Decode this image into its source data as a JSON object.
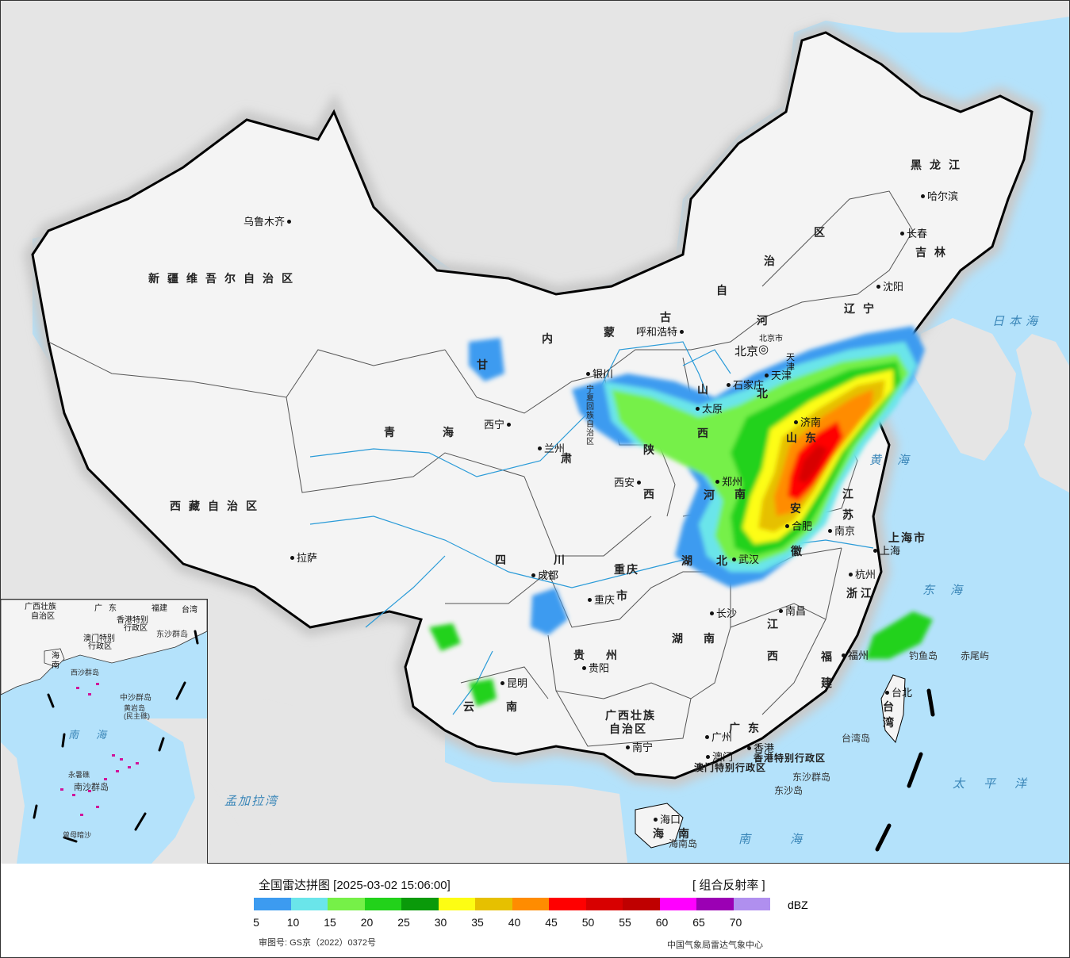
{
  "legend": {
    "title": "全国雷达拼图 [2025-03-02 15:06:00]",
    "product": "[ 组合反射率 ]",
    "unit": "dBZ",
    "approval": "审图号: GS京（2022）0372号",
    "source": "中国气象局雷达气象中心",
    "colors": [
      "#3c9bf0",
      "#6ae5ea",
      "#76f048",
      "#22d21a",
      "#0a9a0a",
      "#fdfd13",
      "#e6c000",
      "#ff8c00",
      "#ff0000",
      "#d80000",
      "#bf0000",
      "#ff00ff",
      "#9b00b4",
      "#b08fef"
    ],
    "ticks": [
      "5",
      "10",
      "15",
      "20",
      "25",
      "30",
      "35",
      "40",
      "45",
      "50",
      "55",
      "60",
      "65",
      "70"
    ]
  },
  "provinces": {
    "xinjiang": "新疆维吾尔自治区",
    "xizang": "西藏自治区",
    "qinghai_1": "青",
    "qinghai_2": "海",
    "gansu": "甘",
    "neimeng_1": "内",
    "neimeng_2": "蒙",
    "neimeng_3": "古",
    "neimeng_4": "自",
    "neimeng_5": "治",
    "neimeng_6": "区",
    "heilongjiang": "黑龙江",
    "jilin": "吉林",
    "liaoning": "辽宁",
    "hebei_1": "河",
    "hebei_2": "北",
    "shanxi_1": "山",
    "shanxi_2": "西",
    "shaanxi_1": "陕",
    "shaanxi_2": "西",
    "ningxia": "宁夏回族自治区",
    "shandong": "山东",
    "henan_1": "河",
    "henan_2": "南",
    "jiangsu_1": "江",
    "jiangsu_2": "苏",
    "anhui_1": "安",
    "anhui_2": "徽",
    "hubei_1": "湖",
    "hubei_2": "北",
    "sichuan_1": "四",
    "sichuan_2": "川",
    "chongqing_1": "重庆",
    "chongqing_2": "市",
    "zhejiang": "浙江",
    "jiangxi_1": "江",
    "jiangxi_2": "西",
    "hunan_1": "湖",
    "hunan_2": "南",
    "guizhou_1": "贵",
    "guizhou_2": "州",
    "yunnan_1": "云",
    "yunnan_2": "南",
    "fujian_1": "福",
    "fujian_2": "建",
    "guangxi_1": "广西壮族",
    "guangxi_2": "自治区",
    "guangdong": "广东",
    "hainan": "海南",
    "taiwan_1": "台",
    "taiwan_2": "湾",
    "shanghai": "上海市",
    "tianjin": "天津",
    "gansu_2": "肃",
    "hongkong": "香港特别行政区",
    "macau": "澳门特别行政区"
  },
  "cities": {
    "urumqi": "乌鲁木齐",
    "lhasa": "拉萨",
    "xining": "西宁",
    "lanzhou": "兰州",
    "yinchuan": "银川",
    "hohhot": "呼和浩特",
    "beijing": "北京",
    "beijing_small": "北京市",
    "tianjin": "天津",
    "shijiazhuang": "石家庄",
    "taiyuan": "太原",
    "jinan": "济南",
    "zhengzhou": "郑州",
    "xian": "西安",
    "hefei": "合肥",
    "nanjing": "南京",
    "shanghai": "上海",
    "hangzhou": "杭州",
    "wuhan": "武汉",
    "chengdu": "成都",
    "chongqing": "重庆",
    "changsha": "长沙",
    "nanchang": "南昌",
    "fuzhou": "福州",
    "guiyang": "贵阳",
    "kunming": "昆明",
    "nanning": "南宁",
    "guangzhou": "广州",
    "hongkong": "香港",
    "macau": "澳门",
    "haikou": "海口",
    "taipei": "台北",
    "harbin": "哈尔滨",
    "changchun": "长春",
    "shenyang": "沈阳"
  },
  "seas": {
    "japan_sea": "日本海",
    "yellow_sea": "黄海",
    "east_sea": "东海",
    "south_sea": "南海",
    "pacific": "太平洋",
    "bengal": "孟加拉湾"
  },
  "islands": {
    "diaoyu": "钓鱼岛",
    "chiwei": "赤尾屿",
    "taiwan_island": "台湾岛",
    "dongsha_qundao": "东沙群岛",
    "dongsha_dao": "东沙岛",
    "hainan_island": "海南岛"
  },
  "inset": {
    "guangxi": "广西壮族",
    "guangxi_2": "自治区",
    "guangdong": "广东",
    "fujian": "福建",
    "taiwan": "台湾",
    "hk": "香港特别",
    "hk_2": "行政区",
    "macau": "澳门特别",
    "macau_2": "行政区",
    "dongsha": "东沙群岛",
    "hainan_1": "海",
    "hainan_2": "南",
    "xisha": "西沙群岛",
    "zhongsha": "中沙群岛",
    "huangyan": "黄岩岛",
    "huangyan_2": "(民主礁)",
    "south_sea_1": "南",
    "south_sea_2": "海",
    "nansha": "南沙群岛",
    "yongshu": "永暑礁",
    "zengmu": "曾母暗沙"
  }
}
